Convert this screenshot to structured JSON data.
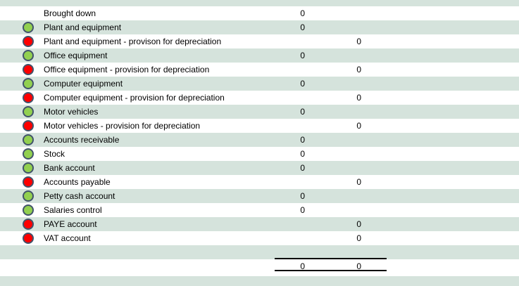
{
  "sheet": {
    "rows": [
      {
        "label": "Brought down",
        "indicator": "none",
        "debit": "0",
        "credit": ""
      },
      {
        "label": "Plant and equipment",
        "indicator": "green",
        "debit": "0",
        "credit": ""
      },
      {
        "label": "Plant and equipment - provison for depreciation",
        "indicator": "red",
        "debit": "",
        "credit": "0"
      },
      {
        "label": "Office equipment",
        "indicator": "green",
        "debit": "0",
        "credit": ""
      },
      {
        "label": "Office equipment - provision for depreciation",
        "indicator": "red",
        "debit": "",
        "credit": "0"
      },
      {
        "label": "Computer equipment",
        "indicator": "green",
        "debit": "0",
        "credit": ""
      },
      {
        "label": "Computer equipment - provision for depreciation",
        "indicator": "red",
        "debit": "",
        "credit": "0"
      },
      {
        "label": "Motor vehicles",
        "indicator": "green",
        "debit": "0",
        "credit": ""
      },
      {
        "label": "Motor vehicles - provision for depreciation",
        "indicator": "red",
        "debit": "",
        "credit": "0"
      },
      {
        "label": "Accounts receivable",
        "indicator": "green",
        "debit": "0",
        "credit": ""
      },
      {
        "label": "Stock",
        "indicator": "green",
        "debit": "0",
        "credit": ""
      },
      {
        "label": "Bank account",
        "indicator": "green",
        "debit": "0",
        "credit": ""
      },
      {
        "label": "Accounts payable",
        "indicator": "red",
        "debit": "",
        "credit": "0"
      },
      {
        "label": "Petty cash account",
        "indicator": "green",
        "debit": "0",
        "credit": ""
      },
      {
        "label": "Salaries control",
        "indicator": "green",
        "debit": "0",
        "credit": ""
      },
      {
        "label": "PAYE account",
        "indicator": "red",
        "debit": "",
        "credit": "0"
      },
      {
        "label": "VAT account",
        "indicator": "red",
        "debit": "",
        "credit": "0"
      }
    ],
    "totals": {
      "debit": "0",
      "credit": "0"
    },
    "colors": {
      "row_band": "#d5e3dc",
      "green_indicator": "#92d050",
      "red_indicator": "#ff0000",
      "indicator_border": "#41536b"
    }
  }
}
